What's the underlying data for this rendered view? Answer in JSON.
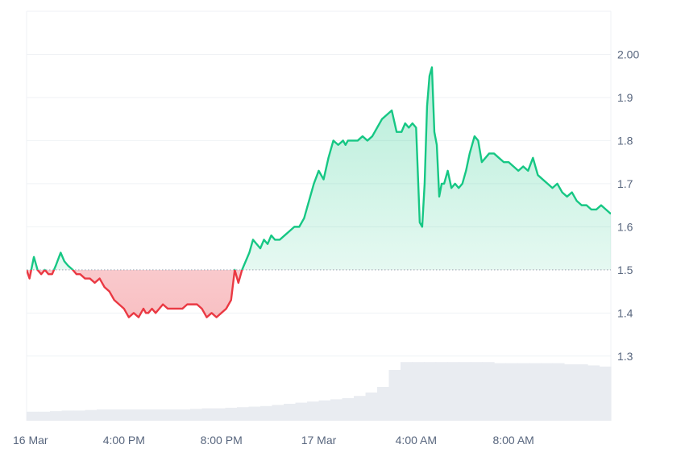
{
  "chart_data": {
    "type": "area",
    "title": "",
    "xlabel": "",
    "ylabel": "",
    "baseline": 1.5,
    "ylim": [
      1.15,
      2.1
    ],
    "y_ticks": [
      "2.00",
      "1.9",
      "1.8",
      "1.7",
      "1.6",
      "1.5",
      "1.4",
      "1.3"
    ],
    "y_tick_values": [
      2.0,
      1.9,
      1.8,
      1.7,
      1.6,
      1.5,
      1.4,
      1.3
    ],
    "x_ticks": [
      "16 Mar",
      "4:00 PM",
      "8:00 PM",
      "17 Mar",
      "4:00 AM",
      "8:00 AM"
    ],
    "x_tick_hours": [
      0,
      4,
      8,
      12,
      16,
      20
    ],
    "x_range_hours": [
      0,
      24
    ],
    "grid": true,
    "colors": {
      "up": "#16c784",
      "down": "#ea3943",
      "up_fill": "#16c784",
      "down_fill": "#ea3943",
      "volume": "#e9ecf1",
      "grid": "#eff2f5",
      "baseline": "#9aa3b2"
    },
    "series": [
      {
        "x": [
          0,
          0.12,
          0.3,
          0.45,
          0.6,
          0.75,
          0.9,
          1.05,
          1.2,
          1.4,
          1.55,
          1.7,
          1.9,
          2.05,
          2.2,
          2.4,
          2.6,
          2.8,
          3.0,
          3.2,
          3.4,
          3.6,
          3.8,
          4.0,
          4.2,
          4.4,
          4.6,
          4.8,
          4.9,
          5.0,
          5.15,
          5.3,
          5.45,
          5.6,
          5.8,
          6.0,
          6.2,
          6.4,
          6.6,
          6.8,
          7.0,
          7.2,
          7.4,
          7.6,
          7.8,
          8.0,
          8.2,
          8.4,
          8.55,
          8.7,
          8.85,
          9.0,
          9.15,
          9.3,
          9.45,
          9.6,
          9.75,
          9.9,
          10.05,
          10.2,
          10.4,
          10.6,
          10.8,
          11.0,
          11.2,
          11.4,
          11.6,
          11.8,
          12.0,
          12.2,
          12.4,
          12.6,
          12.8,
          13.0,
          13.1,
          13.2,
          13.4,
          13.6,
          13.8,
          14.0,
          14.2,
          14.4,
          14.6,
          14.8,
          15.0,
          15.2,
          15.4,
          15.55,
          15.7,
          15.85,
          16.0,
          16.15,
          16.25,
          16.35,
          16.45,
          16.55,
          16.65,
          16.75,
          16.85,
          16.95,
          17.05,
          17.15,
          17.3,
          17.45,
          17.6,
          17.75,
          17.9,
          18.05,
          18.2,
          18.4,
          18.55,
          18.7,
          18.85,
          19.0,
          19.2,
          19.4,
          19.6,
          19.8,
          20.0,
          20.2,
          20.4,
          20.6,
          20.8,
          21.0,
          21.2,
          21.4,
          21.6,
          21.8,
          22.0,
          22.2,
          22.4,
          22.6,
          22.8,
          23.0,
          23.2,
          23.4,
          23.6,
          23.8,
          24.0
        ],
        "values": [
          1.5,
          1.48,
          1.53,
          1.5,
          1.49,
          1.5,
          1.49,
          1.49,
          1.51,
          1.54,
          1.52,
          1.51,
          1.5,
          1.49,
          1.49,
          1.48,
          1.48,
          1.47,
          1.48,
          1.46,
          1.45,
          1.43,
          1.42,
          1.41,
          1.39,
          1.4,
          1.39,
          1.41,
          1.4,
          1.4,
          1.41,
          1.4,
          1.41,
          1.42,
          1.41,
          1.41,
          1.41,
          1.41,
          1.42,
          1.42,
          1.42,
          1.41,
          1.39,
          1.4,
          1.39,
          1.4,
          1.41,
          1.43,
          1.5,
          1.47,
          1.5,
          1.52,
          1.54,
          1.57,
          1.56,
          1.55,
          1.57,
          1.56,
          1.58,
          1.57,
          1.57,
          1.58,
          1.59,
          1.6,
          1.6,
          1.62,
          1.66,
          1.7,
          1.73,
          1.71,
          1.76,
          1.8,
          1.79,
          1.8,
          1.79,
          1.8,
          1.8,
          1.8,
          1.81,
          1.8,
          1.81,
          1.83,
          1.85,
          1.86,
          1.87,
          1.82,
          1.82,
          1.84,
          1.83,
          1.84,
          1.83,
          1.61,
          1.6,
          1.7,
          1.88,
          1.95,
          1.97,
          1.82,
          1.79,
          1.67,
          1.7,
          1.7,
          1.73,
          1.69,
          1.7,
          1.69,
          1.7,
          1.73,
          1.77,
          1.81,
          1.8,
          1.75,
          1.76,
          1.77,
          1.77,
          1.76,
          1.75,
          1.75,
          1.74,
          1.73,
          1.74,
          1.73,
          1.76,
          1.72,
          1.71,
          1.7,
          1.69,
          1.7,
          1.68,
          1.67,
          1.68,
          1.66,
          1.65,
          1.65,
          1.64,
          1.64,
          1.65,
          1.64,
          1.63
        ]
      }
    ],
    "volume_levels": [
      0.08,
      0.08,
      0.085,
      0.09,
      0.09,
      0.095,
      0.1,
      0.1,
      0.1,
      0.1,
      0.1,
      0.1,
      0.1,
      0.1,
      0.105,
      0.11,
      0.11,
      0.115,
      0.12,
      0.125,
      0.13,
      0.14,
      0.15,
      0.16,
      0.17,
      0.18,
      0.19,
      0.2,
      0.22,
      0.25,
      0.3,
      0.45,
      0.52,
      0.52,
      0.52,
      0.52,
      0.52,
      0.52,
      0.52,
      0.52,
      0.51,
      0.51,
      0.51,
      0.51,
      0.51,
      0.51,
      0.5,
      0.5,
      0.49,
      0.48
    ]
  }
}
